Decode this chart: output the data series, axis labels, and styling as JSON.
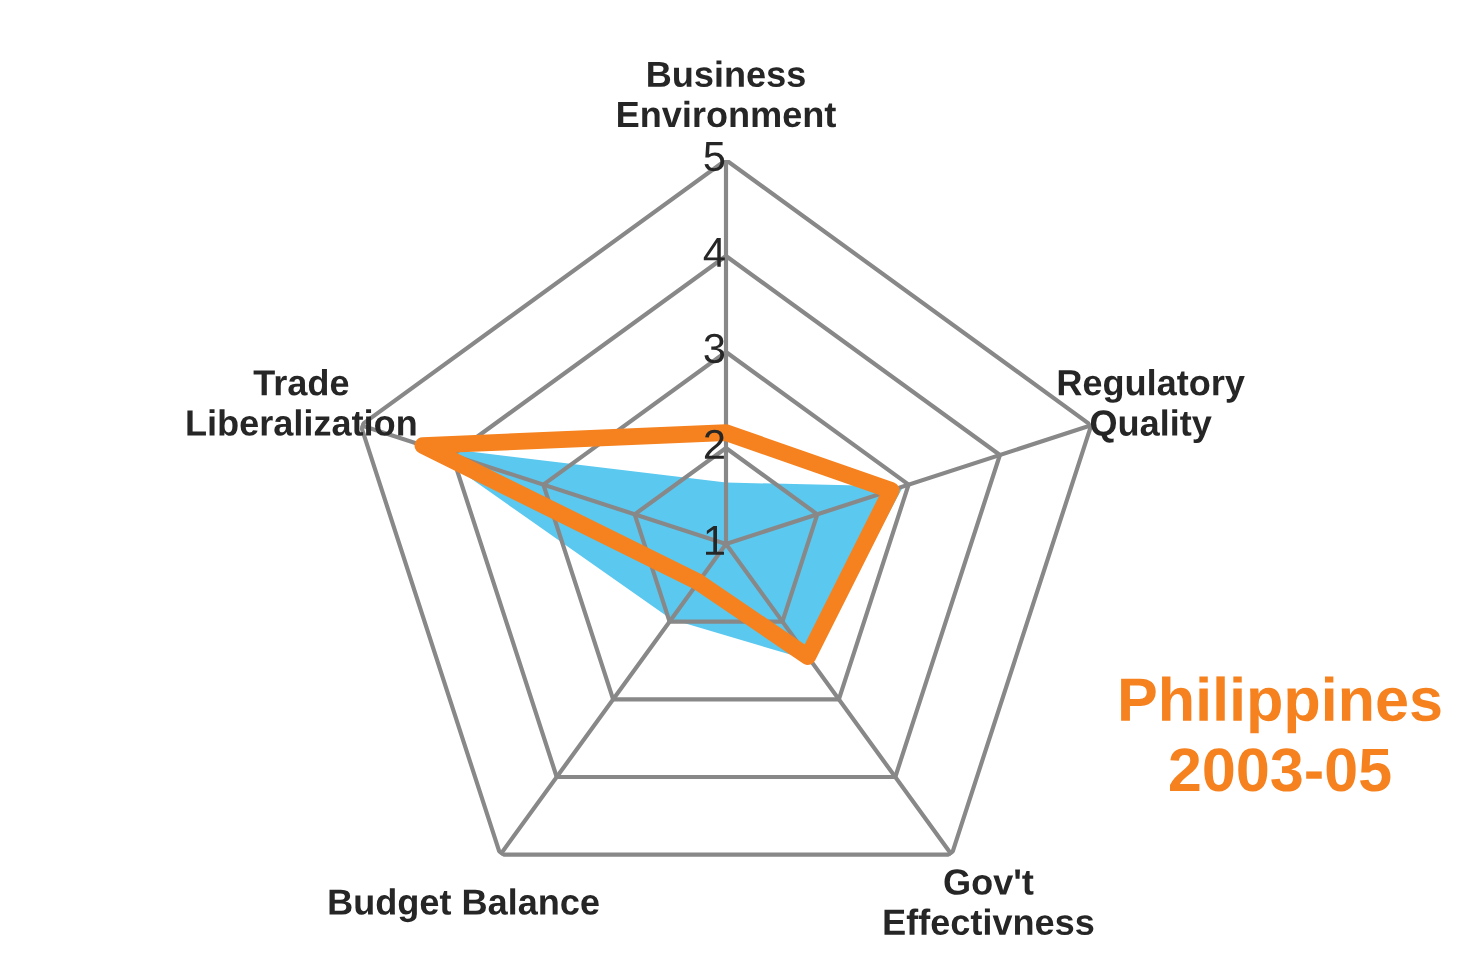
{
  "chart_data": {
    "type": "radar",
    "categories": [
      "Business\nEnvironment",
      "Regulatory\nQuality",
      "Gov't\nEffectivness",
      "Budget Balance",
      "Trade\nLiberalization"
    ],
    "ylim": [
      1,
      5
    ],
    "yticks": [
      1,
      2,
      3,
      4,
      5
    ],
    "grid": true,
    "legend": false,
    "series": [
      {
        "type": "area",
        "color": "#5bc8f0",
        "values": [
          1.64,
          2.94,
          2.5,
          1.97,
          4.3
        ]
      },
      {
        "name": "Philippines\n2003-05",
        "color": "#f5821f",
        "values": [
          2.16,
          2.81,
          2.45,
          1.49,
          4.32
        ]
      }
    ]
  }
}
